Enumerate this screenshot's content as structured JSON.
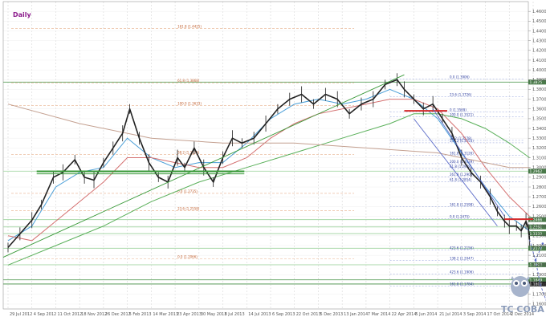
{
  "chart_data": {
    "type": "line",
    "title": "Daily",
    "instrument_style": "candlestick",
    "ylim": [
      1.155,
      1.47
    ],
    "y_ticks": [
      1.46,
      1.45,
      1.44,
      1.43,
      1.42,
      1.41,
      1.4,
      1.39,
      1.38,
      1.37,
      1.36,
      1.35,
      1.34,
      1.33,
      1.32,
      1.31,
      1.3,
      1.29,
      1.28,
      1.27,
      1.26,
      1.25,
      1.24,
      1.23,
      1.22,
      1.21,
      1.2,
      1.19,
      1.18,
      1.17,
      1.16
    ],
    "x_labels": [
      "29 Jul 2012",
      "4 Sep 2012",
      "11 Oct 2012",
      "18 Nov 2012",
      "26 Dec 2012",
      "5 Feb 2013",
      "14 Mar 2013",
      "23 Apr 2013",
      "30 May 2013",
      "8 Jul 2013",
      "14 Jul 2013",
      "6 Sep 2013",
      "22 Oct 2013",
      "5 Dec 2013",
      "13 Jan 2014",
      "7 Mar 2014",
      "22 Apr 2014",
      "5 Jun 2014",
      "21 Jul 2014",
      "3 Sep 2014",
      "17 Oct 2014",
      "2 Dec 2014"
    ],
    "price_series": [
      {
        "x": 0,
        "y": 1.218
      },
      {
        "x": 0.5,
        "y": 1.232
      },
      {
        "x": 1,
        "y": 1.246
      },
      {
        "x": 1.4,
        "y": 1.262
      },
      {
        "x": 1.9,
        "y": 1.29
      },
      {
        "x": 2.3,
        "y": 1.295
      },
      {
        "x": 2.8,
        "y": 1.308
      },
      {
        "x": 3.2,
        "y": 1.29
      },
      {
        "x": 3.6,
        "y": 1.287
      },
      {
        "x": 4.0,
        "y": 1.305
      },
      {
        "x": 4.4,
        "y": 1.32
      },
      {
        "x": 4.8,
        "y": 1.335
      },
      {
        "x": 5.1,
        "y": 1.36
      },
      {
        "x": 5.5,
        "y": 1.33
      },
      {
        "x": 5.9,
        "y": 1.305
      },
      {
        "x": 6.3,
        "y": 1.29
      },
      {
        "x": 6.7,
        "y": 1.285
      },
      {
        "x": 7.1,
        "y": 1.31
      },
      {
        "x": 7.4,
        "y": 1.3
      },
      {
        "x": 7.8,
        "y": 1.32
      },
      {
        "x": 8.2,
        "y": 1.3
      },
      {
        "x": 8.6,
        "y": 1.285
      },
      {
        "x": 9.0,
        "y": 1.31
      },
      {
        "x": 9.4,
        "y": 1.33
      },
      {
        "x": 9.8,
        "y": 1.325
      },
      {
        "x": 10.3,
        "y": 1.33
      },
      {
        "x": 10.8,
        "y": 1.345
      },
      {
        "x": 11.3,
        "y": 1.36
      },
      {
        "x": 11.8,
        "y": 1.37
      },
      {
        "x": 12.3,
        "y": 1.375
      },
      {
        "x": 12.8,
        "y": 1.365
      },
      {
        "x": 13.3,
        "y": 1.375
      },
      {
        "x": 13.8,
        "y": 1.37
      },
      {
        "x": 14.3,
        "y": 1.355
      },
      {
        "x": 14.8,
        "y": 1.365
      },
      {
        "x": 15.3,
        "y": 1.37
      },
      {
        "x": 15.8,
        "y": 1.385
      },
      {
        "x": 16.3,
        "y": 1.39
      },
      {
        "x": 16.6,
        "y": 1.38
      },
      {
        "x": 17.0,
        "y": 1.37
      },
      {
        "x": 17.4,
        "y": 1.36
      },
      {
        "x": 17.8,
        "y": 1.365
      },
      {
        "x": 18.2,
        "y": 1.35
      },
      {
        "x": 18.6,
        "y": 1.335
      },
      {
        "x": 19.0,
        "y": 1.31
      },
      {
        "x": 19.4,
        "y": 1.295
      },
      {
        "x": 19.8,
        "y": 1.285
      },
      {
        "x": 20.2,
        "y": 1.27
      },
      {
        "x": 20.5,
        "y": 1.255
      },
      {
        "x": 20.8,
        "y": 1.245
      },
      {
        "x": 21.0,
        "y": 1.24
      },
      {
        "x": 21.3,
        "y": 1.24
      },
      {
        "x": 21.5,
        "y": 1.235
      },
      {
        "x": 21.7,
        "y": 1.245
      },
      {
        "x": 21.8,
        "y": 1.237
      },
      {
        "x": 21.85,
        "y": 1.226
      }
    ],
    "moving_averages": [
      {
        "name": "fast",
        "color": "#4a9fd8",
        "points": [
          {
            "x": 0,
            "y": 1.225
          },
          {
            "x": 1,
            "y": 1.24
          },
          {
            "x": 2,
            "y": 1.28
          },
          {
            "x": 3,
            "y": 1.295
          },
          {
            "x": 4,
            "y": 1.3
          },
          {
            "x": 5,
            "y": 1.33
          },
          {
            "x": 6,
            "y": 1.31
          },
          {
            "x": 7,
            "y": 1.3
          },
          {
            "x": 8,
            "y": 1.305
          },
          {
            "x": 9,
            "y": 1.305
          },
          {
            "x": 10,
            "y": 1.325
          },
          {
            "x": 11,
            "y": 1.35
          },
          {
            "x": 12,
            "y": 1.365
          },
          {
            "x": 13,
            "y": 1.37
          },
          {
            "x": 14,
            "y": 1.365
          },
          {
            "x": 15,
            "y": 1.37
          },
          {
            "x": 16,
            "y": 1.38
          },
          {
            "x": 17,
            "y": 1.37
          },
          {
            "x": 18,
            "y": 1.35
          },
          {
            "x": 19,
            "y": 1.315
          },
          {
            "x": 20,
            "y": 1.28
          },
          {
            "x": 21,
            "y": 1.25
          },
          {
            "x": 21.85,
            "y": 1.235
          }
        ]
      },
      {
        "name": "medium",
        "color": "#d47070",
        "points": [
          {
            "x": 0,
            "y": 1.23
          },
          {
            "x": 1,
            "y": 1.225
          },
          {
            "x": 2,
            "y": 1.245
          },
          {
            "x": 3,
            "y": 1.265
          },
          {
            "x": 4,
            "y": 1.285
          },
          {
            "x": 5,
            "y": 1.31
          },
          {
            "x": 6,
            "y": 1.31
          },
          {
            "x": 7,
            "y": 1.305
          },
          {
            "x": 8,
            "y": 1.3
          },
          {
            "x": 9,
            "y": 1.3
          },
          {
            "x": 10,
            "y": 1.31
          },
          {
            "x": 11,
            "y": 1.33
          },
          {
            "x": 12,
            "y": 1.345
          },
          {
            "x": 13,
            "y": 1.355
          },
          {
            "x": 14,
            "y": 1.36
          },
          {
            "x": 15,
            "y": 1.365
          },
          {
            "x": 16,
            "y": 1.37
          },
          {
            "x": 17,
            "y": 1.37
          },
          {
            "x": 18,
            "y": 1.36
          },
          {
            "x": 19,
            "y": 1.335
          },
          {
            "x": 20,
            "y": 1.3
          },
          {
            "x": 21,
            "y": 1.27
          },
          {
            "x": 21.85,
            "y": 1.25
          }
        ]
      },
      {
        "name": "slow",
        "color": "#5ab05a",
        "points": [
          {
            "x": 0,
            "y": 1.2
          },
          {
            "x": 2,
            "y": 1.22
          },
          {
            "x": 4,
            "y": 1.24
          },
          {
            "x": 6,
            "y": 1.265
          },
          {
            "x": 8,
            "y": 1.285
          },
          {
            "x": 10,
            "y": 1.3
          },
          {
            "x": 12,
            "y": 1.315
          },
          {
            "x": 14,
            "y": 1.33
          },
          {
            "x": 16,
            "y": 1.345
          },
          {
            "x": 17,
            "y": 1.355
          },
          {
            "x": 18,
            "y": 1.355
          },
          {
            "x": 19,
            "y": 1.35
          },
          {
            "x": 20,
            "y": 1.34
          },
          {
            "x": 21,
            "y": 1.325
          },
          {
            "x": 21.85,
            "y": 1.31
          }
        ]
      },
      {
        "name": "long",
        "color": "#c4a090",
        "points": [
          {
            "x": 0,
            "y": 1.365
          },
          {
            "x": 3,
            "y": 1.345
          },
          {
            "x": 6,
            "y": 1.33
          },
          {
            "x": 9,
            "y": 1.325
          },
          {
            "x": 12,
            "y": 1.325
          },
          {
            "x": 15,
            "y": 1.32
          },
          {
            "x": 18,
            "y": 1.315
          },
          {
            "x": 21,
            "y": 1.3
          },
          {
            "x": 21.85,
            "y": 1.3
          }
        ]
      }
    ],
    "horizontal_levels": [
      {
        "y": 1.3875,
        "color": "#5c9f5c",
        "label": "1.3875",
        "badge": "#4a7a4a"
      },
      {
        "y": 1.2962,
        "color": "#a8d8a8",
        "label": "1.2962",
        "badge": "#4a7a4a"
      },
      {
        "y": 1.2466,
        "color": "#a8d8a8",
        "label": "1.2466",
        "badge": "#4a7a4a"
      },
      {
        "y": 1.2391,
        "color": "#a8d8a8",
        "label": "1.2391",
        "badge": "#4a7a4a"
      },
      {
        "y": 1.2322,
        "color": "#a8d8a8",
        "label": "1.2322",
        "badge": "#4a7a4a"
      },
      {
        "y": 1.2172,
        "color": "#a8d8a8",
        "label": "1.2172",
        "badge": "#4a7a4a"
      },
      {
        "y": 1.2003,
        "color": "#a8d8a8",
        "label": "1.2003",
        "badge": "#4a7a4a"
      },
      {
        "y": 1.1849,
        "color": "#5c9f5c",
        "label": "1.1849",
        "badge": "#4a7a4a"
      },
      {
        "y": 1.1806,
        "color": "#5c9f5c",
        "label": "1.1806",
        "badge": "#222222"
      }
    ],
    "fib_levels_left": [
      {
        "y": 1.4425,
        "label": "161.8 (1.4425)"
      },
      {
        "y": 1.3868,
        "label": "61.8 (1.3868)"
      },
      {
        "y": 1.3633,
        "label": "100.0 (1.3633)"
      },
      {
        "y": 1.3135,
        "label": "38.2 (1.3135)"
      },
      {
        "y": 1.2735,
        "label": "0.0 (1.2735)"
      },
      {
        "y": 1.2558,
        "label": "23.6 (1.2558)"
      },
      {
        "y": 1.2066,
        "label": "0.0 (1.2066)"
      }
    ],
    "fib_levels_right": [
      {
        "y": 1.3906,
        "label": "0.0 (1.3906)"
      },
      {
        "y": 1.3726,
        "label": "23.6 (1.3726)"
      },
      {
        "y": 1.3569,
        "label": "0 (1.3569)"
      },
      {
        "y": 1.3521,
        "label": "100.0 (1.3521)"
      },
      {
        "y": 1.3253,
        "label": "138.2 (1.3253)"
      },
      {
        "y": 1.3126,
        "label": "161.8 (1.3126)"
      },
      {
        "y": 1.3039,
        "label": "200.0 (1.3039)"
      },
      {
        "y": 1.2905,
        "label": "261.8 (1.2905)"
      },
      {
        "y": 1.2598,
        "label": "161.8 (1.2598)"
      },
      {
        "y": 1.3278,
        "label": "38.2 (1.3278)"
      },
      {
        "y": 1.2988,
        "label": "61.8 (1.2988)"
      },
      {
        "y": 1.2854,
        "label": "61.8 (1.2854)"
      },
      {
        "y": 1.2475,
        "label": "0.0 (1.2475)"
      },
      {
        "y": 1.2047,
        "label": "138.2 (1.2047)"
      },
      {
        "y": 1.1906,
        "label": "423.6 (1.1906)"
      },
      {
        "y": 1.1784,
        "label": "161.8 (1.1784)"
      },
      {
        "y": 1.2156,
        "label": "423.6 (1.2156)"
      }
    ],
    "grid": true
  },
  "watermark": {
    "text": "TC COBA"
  }
}
